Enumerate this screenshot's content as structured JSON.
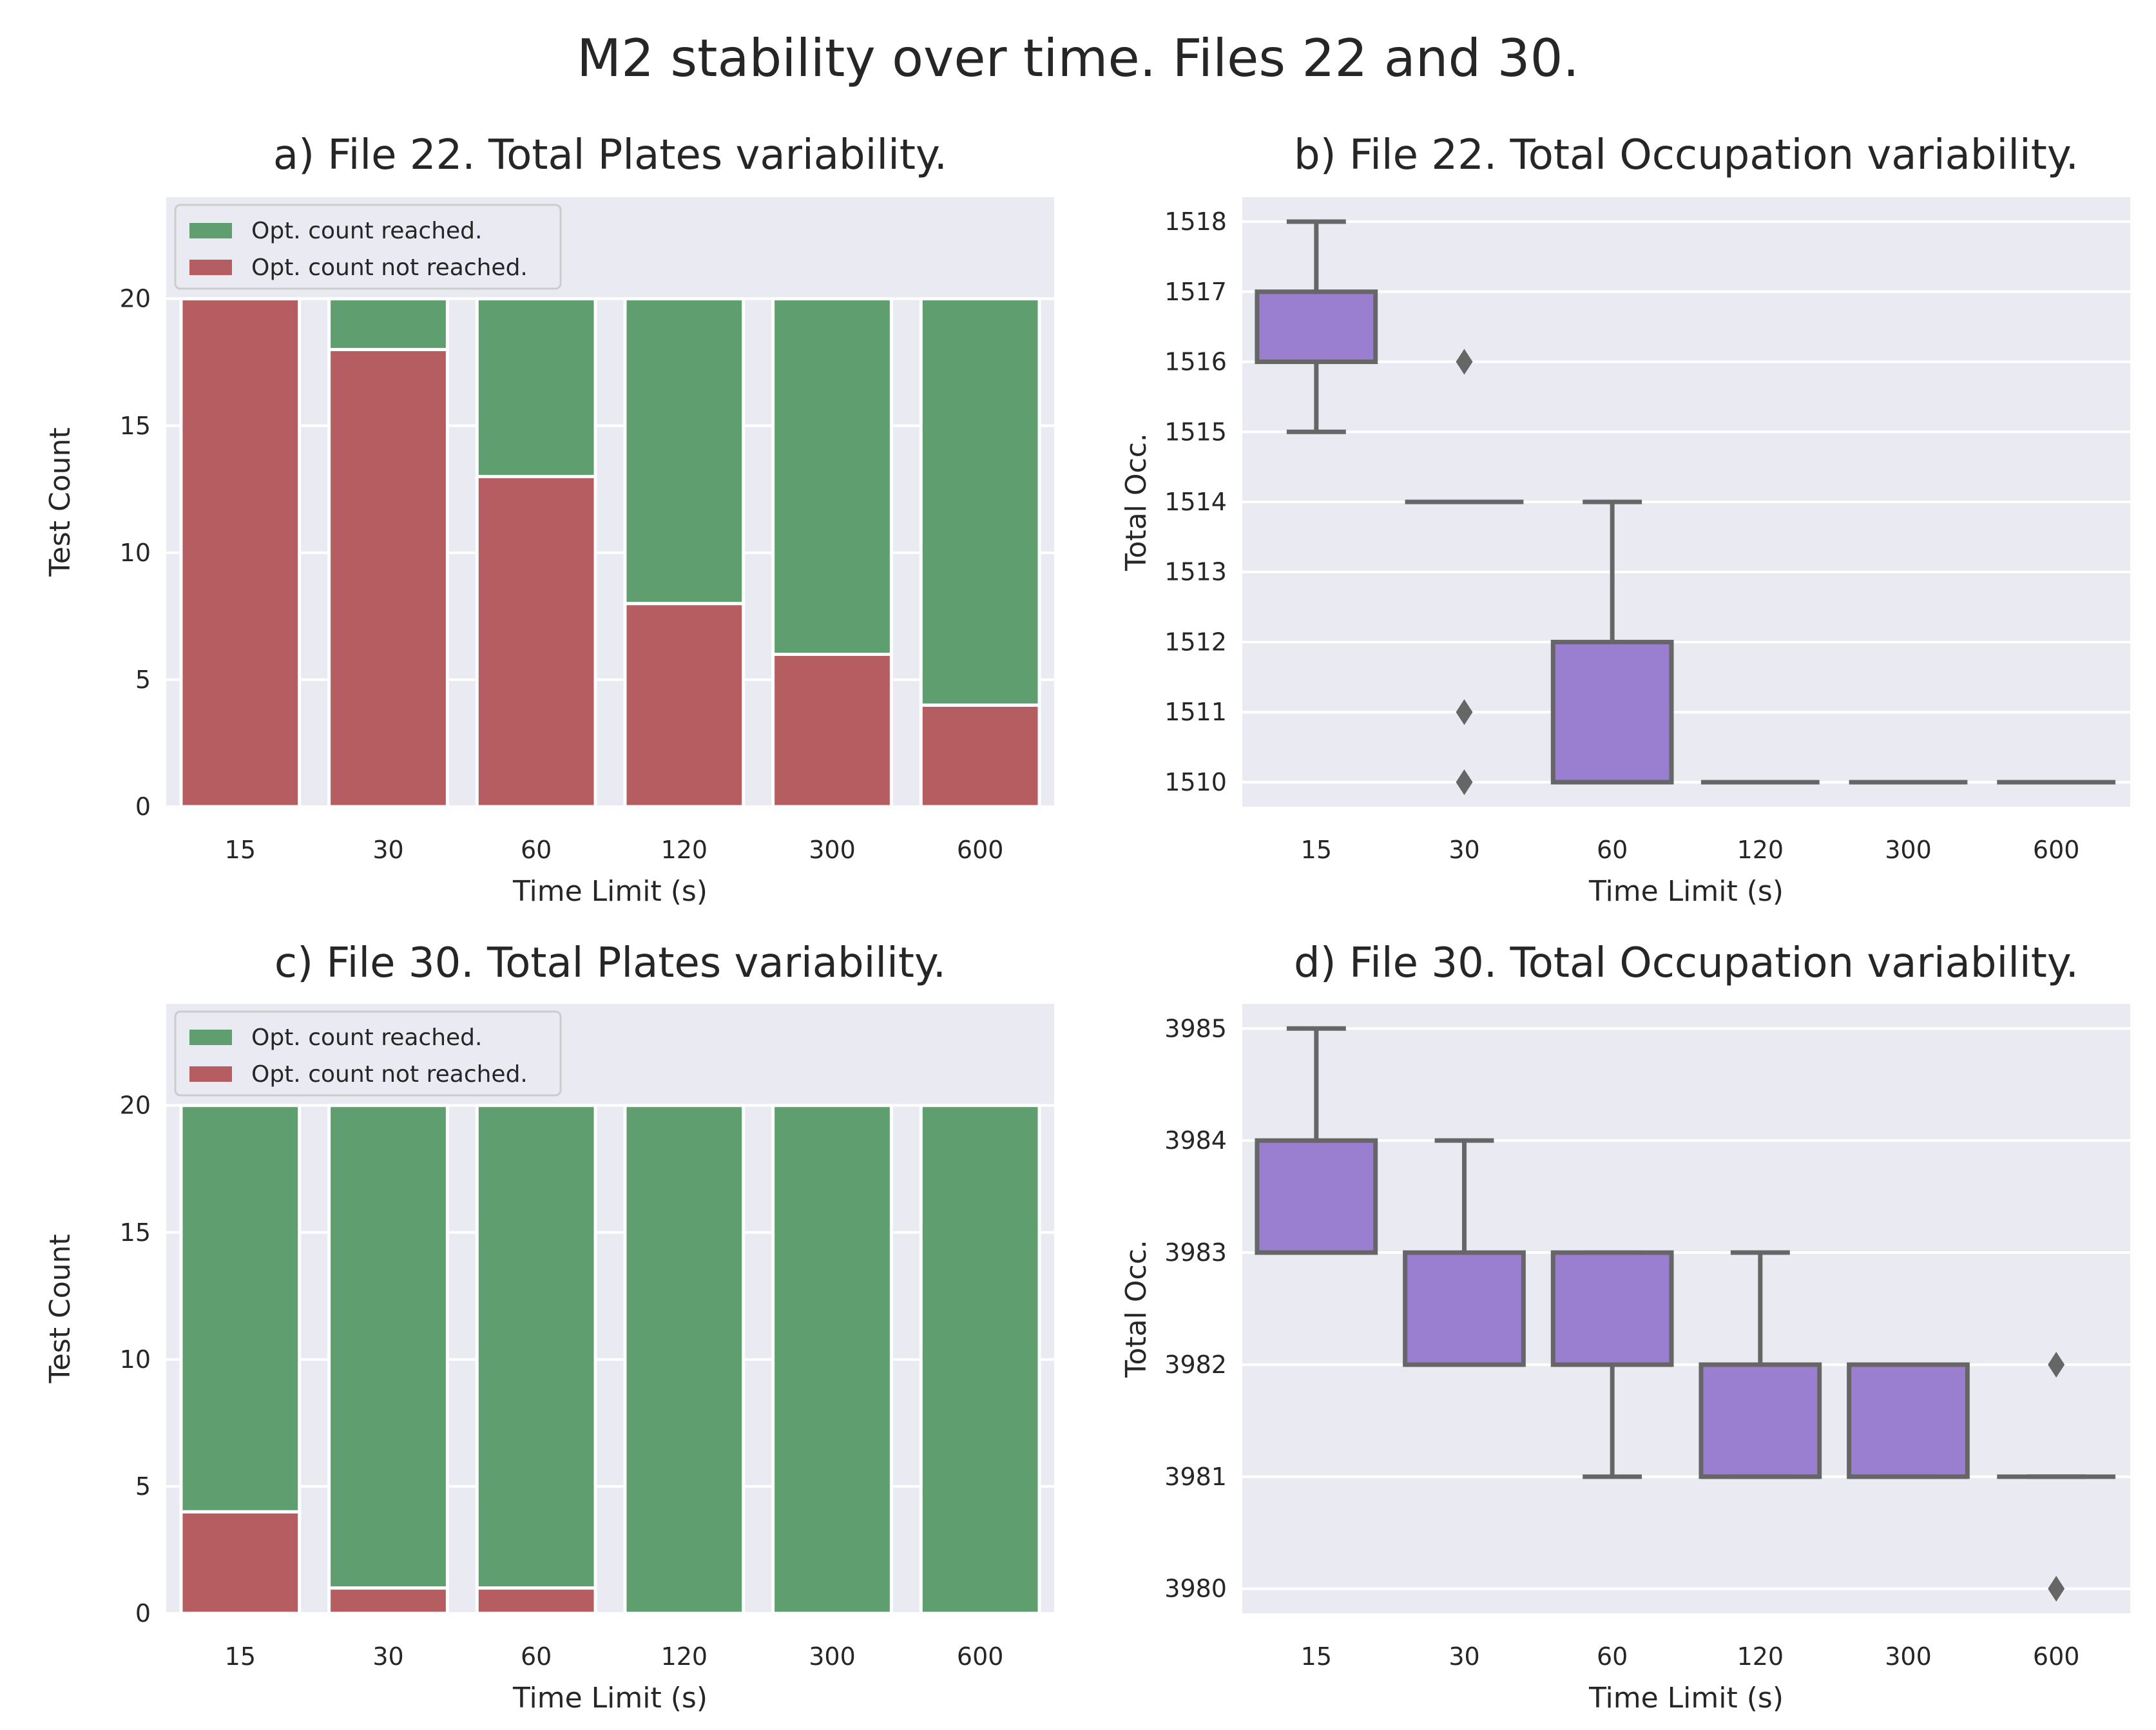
{
  "figure_title": "M2 stability over time. Files 22 and 30.",
  "colors": {
    "background": "#EAEAF2",
    "grid": "#FFFFFF",
    "reached": "#5F9E6E",
    "not_reached": "#B55D60",
    "box_fill": "#9A7ED0",
    "box_edge": "#666666",
    "text": "#262626"
  },
  "chart_data": [
    {
      "id": "a",
      "type": "bar",
      "stacked": true,
      "title": "a) File 22. Total Plates variability.",
      "xlabel": "Time Limit (s)",
      "ylabel": "Test Count",
      "categories": [
        "15",
        "30",
        "60",
        "120",
        "300",
        "600"
      ],
      "ylim": [
        0,
        24
      ],
      "yticks": [
        0,
        5,
        10,
        15,
        20
      ],
      "legend_position": "upper-left",
      "series": [
        {
          "name": "Opt. count reached.",
          "values": [
            0,
            2,
            7,
            12,
            14,
            16
          ]
        },
        {
          "name": "Opt. count not reached.",
          "values": [
            20,
            18,
            13,
            8,
            6,
            4
          ]
        }
      ]
    },
    {
      "id": "b",
      "type": "box",
      "title": "b) File 22. Total Occupation variability.",
      "xlabel": "Time Limit (s)",
      "ylabel": "Total Occ.",
      "categories": [
        "15",
        "30",
        "60",
        "120",
        "300",
        "600"
      ],
      "ylim": [
        1509.65,
        1518.35
      ],
      "yticks": [
        1510,
        1511,
        1512,
        1513,
        1514,
        1515,
        1516,
        1517,
        1518
      ],
      "boxes": [
        {
          "whislo": 1515,
          "q1": 1516,
          "med": 1516,
          "q3": 1517,
          "whishi": 1518,
          "fliers": []
        },
        {
          "whislo": 1514,
          "q1": 1514,
          "med": 1514,
          "q3": 1514,
          "whishi": 1514,
          "fliers": [
            1516,
            1511,
            1510
          ]
        },
        {
          "whislo": 1510,
          "q1": 1510,
          "med": 1510,
          "q3": 1512,
          "whishi": 1514,
          "fliers": []
        },
        {
          "whislo": 1510,
          "q1": 1510,
          "med": 1510,
          "q3": 1510,
          "whishi": 1510,
          "fliers": []
        },
        {
          "whislo": 1510,
          "q1": 1510,
          "med": 1510,
          "q3": 1510,
          "whishi": 1510,
          "fliers": []
        },
        {
          "whislo": 1510,
          "q1": 1510,
          "med": 1510,
          "q3": 1510,
          "whishi": 1510,
          "fliers": []
        }
      ]
    },
    {
      "id": "c",
      "type": "bar",
      "stacked": true,
      "title": "c) File 30. Total Plates variability.",
      "xlabel": "Time Limit (s)",
      "ylabel": "Test Count",
      "categories": [
        "15",
        "30",
        "60",
        "120",
        "300",
        "600"
      ],
      "ylim": [
        0,
        24
      ],
      "yticks": [
        0,
        5,
        10,
        15,
        20
      ],
      "legend_position": "upper-left",
      "series": [
        {
          "name": "Opt. count reached.",
          "values": [
            16,
            19,
            19,
            20,
            20,
            20
          ]
        },
        {
          "name": "Opt. count not reached.",
          "values": [
            4,
            1,
            1,
            0,
            0,
            0
          ]
        }
      ]
    },
    {
      "id": "d",
      "type": "box",
      "title": "d) File 30. Total Occupation variability.",
      "xlabel": "Time Limit (s)",
      "ylabel": "Total Occ.",
      "categories": [
        "15",
        "30",
        "60",
        "120",
        "300",
        "600"
      ],
      "ylim": [
        3979.78,
        3985.22
      ],
      "yticks": [
        3980,
        3981,
        3982,
        3983,
        3984,
        3985
      ],
      "boxes": [
        {
          "whislo": 3983,
          "q1": 3983,
          "med": 3983,
          "q3": 3984,
          "whishi": 3985,
          "fliers": []
        },
        {
          "whislo": 3982,
          "q1": 3982,
          "med": 3982,
          "q3": 3983,
          "whishi": 3984,
          "fliers": []
        },
        {
          "whislo": 3981,
          "q1": 3982,
          "med": 3982,
          "q3": 3983,
          "whishi": 3983,
          "fliers": []
        },
        {
          "whislo": 3981,
          "q1": 3981,
          "med": 3981,
          "q3": 3982,
          "whishi": 3983,
          "fliers": []
        },
        {
          "whislo": 3981,
          "q1": 3981,
          "med": 3981,
          "q3": 3982,
          "whishi": 3982,
          "fliers": []
        },
        {
          "whislo": 3981,
          "q1": 3981,
          "med": 3981,
          "q3": 3981,
          "whishi": 3981,
          "fliers": [
            3982,
            3980
          ]
        }
      ]
    }
  ]
}
